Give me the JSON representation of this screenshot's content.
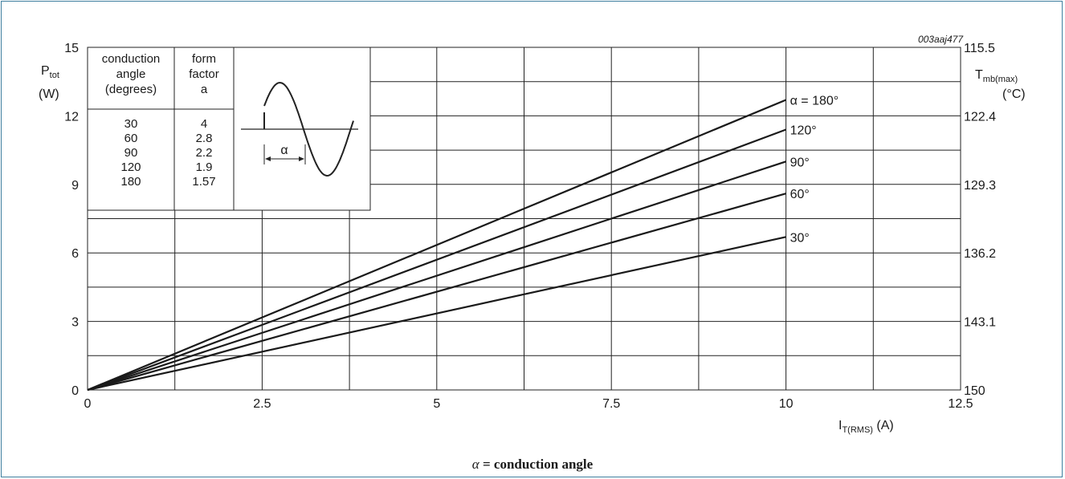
{
  "figure_code": "003aaj477",
  "caption": {
    "symbol": "α",
    "text": " = conduction angle"
  },
  "inset_table": {
    "headers": [
      [
        "conduction",
        "angle",
        "(degrees)"
      ],
      [
        "form",
        "factor",
        "a"
      ]
    ],
    "rows": [
      [
        "30",
        "4"
      ],
      [
        "60",
        "2.8"
      ],
      [
        "90",
        "2.2"
      ],
      [
        "120",
        "1.9"
      ],
      [
        "180",
        "1.57"
      ]
    ],
    "waveform_label": "α"
  },
  "chart_data": {
    "type": "line",
    "x_axis": {
      "label_main": "I",
      "label_sub": "T(RMS)",
      "label_unit": " (A)",
      "range": [
        0,
        12.5
      ],
      "ticks": [
        0,
        2.5,
        5,
        7.5,
        10,
        12.5
      ],
      "tick_labels": [
        "0",
        "2.5",
        "5",
        "7.5",
        "10",
        "12.5"
      ],
      "minor_gridlines": [
        1.25,
        3.75,
        6.25,
        8.75,
        11.25
      ]
    },
    "y_axis_left": {
      "label_main": "P",
      "label_sub": "tot",
      "label_unit": "(W)",
      "range": [
        0,
        15
      ],
      "ticks": [
        0,
        3,
        6,
        9,
        12,
        15
      ],
      "tick_labels": [
        "0",
        "3",
        "6",
        "9",
        "12",
        "15"
      ],
      "minor_gridlines": [
        1.5,
        4.5,
        7.5,
        10.5,
        13.5
      ]
    },
    "y_axis_right": {
      "label_main": "T",
      "label_sub": "mb(max)",
      "label_unit": "(°C)",
      "tick_labels": [
        "150",
        "143.1",
        "136.2",
        "129.3",
        "122.4",
        "115.5"
      ]
    },
    "grid": true,
    "series": [
      {
        "name": "α = 180°",
        "x": [
          0,
          10
        ],
        "y": [
          0,
          12.7
        ]
      },
      {
        "name": "120°",
        "x": [
          0,
          10
        ],
        "y": [
          0,
          11.4
        ]
      },
      {
        "name": "90°",
        "x": [
          0,
          10
        ],
        "y": [
          0,
          10.0
        ]
      },
      {
        "name": "60°",
        "x": [
          0,
          10
        ],
        "y": [
          0,
          8.6
        ]
      },
      {
        "name": "30°",
        "x": [
          0,
          10
        ],
        "y": [
          0,
          6.7
        ]
      }
    ]
  }
}
